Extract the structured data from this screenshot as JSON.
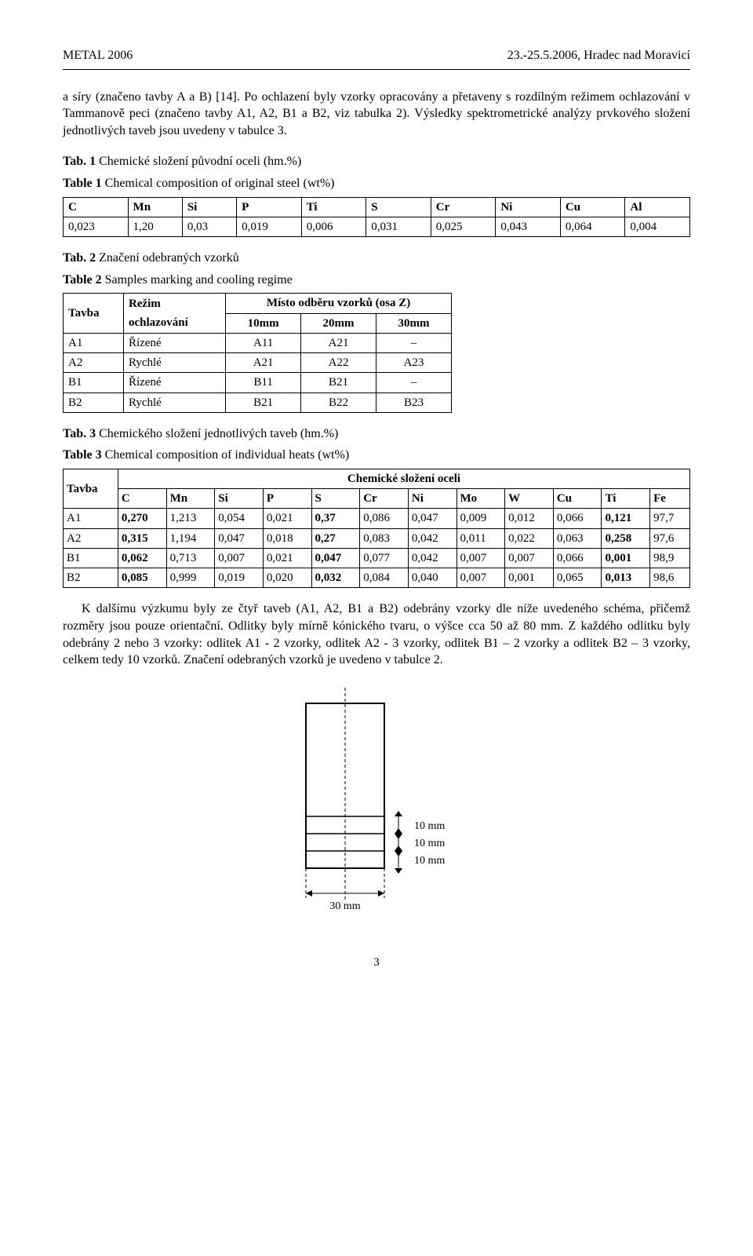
{
  "header": {
    "left": "METAL 2006",
    "right": "23.-25.5.2006, Hradec nad Moravicí"
  },
  "paragraph1": "a síry (značeno tavby A a B) [14]. Po ochlazení byly vzorky opracovány a přetaveny s rozdílným režimem ochlazování v Tammanově peci (značeno tavby A1, A2, B1 a B2, viz tabulka 2). Výsledky spektrometrické analýzy prvkového složení jednotlivých taveb jsou uvedeny v tabulce 3.",
  "table1": {
    "caption_cz_prefix": "Tab. 1 ",
    "caption_cz": "Chemické složení původní oceli (hm.%)",
    "caption_en_prefix": "Table 1 ",
    "caption_en": "Chemical composition of original steel (wt%)",
    "headers": [
      "C",
      "Mn",
      "Si",
      "P",
      "Ti",
      "S",
      "Cr",
      "Ni",
      "Cu",
      "Al"
    ],
    "row": [
      "0,023",
      "1,20",
      "0,03",
      "0,019",
      "0,006",
      "0,031",
      "0,025",
      "0,043",
      "0,064",
      "0,004"
    ]
  },
  "table2": {
    "caption_cz_prefix": "Tab. 2 ",
    "caption_cz": "Značení odebraných vzorků",
    "caption_en_prefix": "Table 2 ",
    "caption_en": "Samples marking and cooling regime",
    "head_tavba": "Tavba",
    "head_rezim_line1": "Režim",
    "head_rezim_line2": "ochlazování",
    "head_misto": "Místo odběru vzorků (osa Z)",
    "head_cols": [
      "10mm",
      "20mm",
      "30mm"
    ],
    "rows": [
      {
        "tavba": "A1",
        "rezim": "Řízené",
        "c1": "A11",
        "c2": "A21",
        "c3": "–"
      },
      {
        "tavba": "A2",
        "rezim": "Rychlé",
        "c1": "A21",
        "c2": "A22",
        "c3": "A23"
      },
      {
        "tavba": "B1",
        "rezim": "Řízené",
        "c1": "B11",
        "c2": "B21",
        "c3": "–"
      },
      {
        "tavba": "B2",
        "rezim": "Rychlé",
        "c1": "B21",
        "c2": "B22",
        "c3": "B23"
      }
    ]
  },
  "table3": {
    "caption_cz_prefix": "Tab. 3 ",
    "caption_cz": "Chemického složení jednotlivých taveb (hm.%)",
    "caption_en_prefix": "Table 3 ",
    "caption_en": "Chemical composition of individual heats (wt%)",
    "head_tavba": "Tavba",
    "head_chem": "Chemické složení oceli",
    "elements": [
      "C",
      "Mn",
      "Si",
      "P",
      "S",
      "Cr",
      "Ni",
      "Mo",
      "W",
      "Cu",
      "Ti",
      "Fe"
    ],
    "rows": [
      {
        "t": "A1",
        "v": [
          "0,270",
          "1,213",
          "0,054",
          "0,021",
          "0,37",
          "0,086",
          "0,047",
          "0,009",
          "0,012",
          "0,066",
          "0,121",
          "97,7"
        ]
      },
      {
        "t": "A2",
        "v": [
          "0,315",
          "1,194",
          "0,047",
          "0,018",
          "0,27",
          "0,083",
          "0,042",
          "0,011",
          "0,022",
          "0,063",
          "0,258",
          "97,6"
        ]
      },
      {
        "t": "B1",
        "v": [
          "0,062",
          "0,713",
          "0,007",
          "0,021",
          "0,047",
          "0,077",
          "0,042",
          "0,007",
          "0,007",
          "0,066",
          "0,001",
          "98,9"
        ]
      },
      {
        "t": "B2",
        "v": [
          "0,085",
          "0,999",
          "0,019",
          "0,020",
          "0,032",
          "0,084",
          "0,040",
          "0,007",
          "0,001",
          "0,065",
          "0,013",
          "98,6"
        ]
      }
    ],
    "bold_map": [
      [
        true,
        false,
        false,
        false,
        true,
        false,
        false,
        false,
        false,
        false,
        true,
        false
      ],
      [
        true,
        false,
        false,
        false,
        true,
        false,
        false,
        false,
        false,
        false,
        true,
        false
      ],
      [
        true,
        false,
        false,
        false,
        true,
        false,
        false,
        false,
        false,
        false,
        true,
        false
      ],
      [
        true,
        false,
        false,
        false,
        true,
        false,
        false,
        false,
        false,
        false,
        true,
        false
      ]
    ]
  },
  "paragraph2": "K dalšímu výzkumu byly ze čtyř taveb (A1, A2, B1 a B2) odebrány vzorky dle níže uvedeného schéma, přičemž rozměry jsou pouze orientační. Odlitky byly mírně kónického tvaru, o výšce cca 50 až 80 mm. Z každého odlitku byly odebrány 2 nebo 3 vzorky: odlitek A1 - 2 vzorky, odlitek A2 - 3 vzorky, odlitek B1 – 2 vzorky a odlitek B2 – 3 vzorky, celkem tedy 10 vzorků. Značení odebraných vzorků je uvedeno v tabulce 2.",
  "diagram": {
    "labels": {
      "a": "10 mm",
      "b": "10 mm",
      "c": "10 mm",
      "w": "30 mm"
    },
    "colors": {
      "stroke": "#000",
      "fill": "#fff",
      "dash": "4,3"
    },
    "font_size": 14
  },
  "page_number": "3"
}
